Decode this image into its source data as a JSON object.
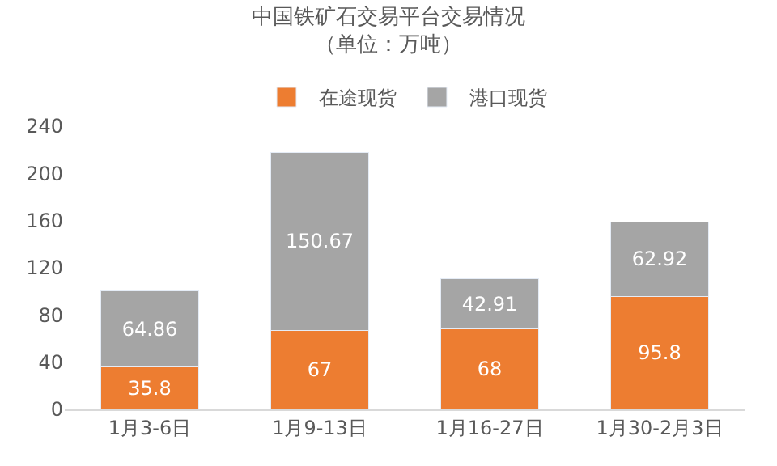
{
  "chart_data": {
    "type": "bar",
    "title": "中国铁矿石交易平台交易情况",
    "subtitle": "（单位：万吨）",
    "categories": [
      "1月3-6日",
      "1月9-13日",
      "1月16-27日",
      "1月30-2月3日"
    ],
    "series": [
      {
        "name": "在途现货",
        "color": "#ed7d31",
        "values": [
          35.8,
          67,
          68,
          95.8
        ]
      },
      {
        "name": "港口现货",
        "color": "#a5a5a5",
        "values": [
          64.86,
          150.67,
          42.91,
          62.92
        ]
      }
    ],
    "stacked": true,
    "ylim": [
      0,
      240
    ],
    "yticks": [
      0,
      40,
      80,
      120,
      160,
      200,
      240
    ],
    "legend": "top",
    "data_labels": true
  }
}
